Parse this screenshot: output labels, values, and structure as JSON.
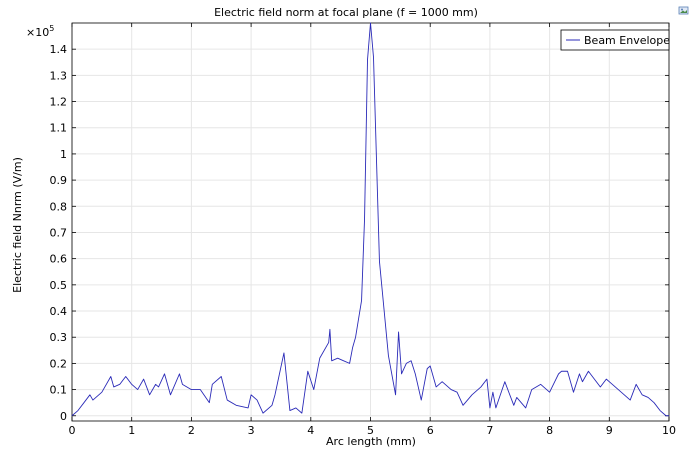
{
  "chart_data": {
    "type": "line",
    "title": "Electric field norm at focal plane (f = 1000 mm)",
    "xlabel": "Arc length (mm)",
    "ylabel": "Electric field Nnrm (V/m)",
    "y_multiplier": "×10",
    "y_multiplier_exponent": "5",
    "xlim": [
      0,
      10
    ],
    "ylim": [
      -0.02,
      1.5
    ],
    "x_ticks": [
      0,
      1,
      2,
      3,
      4,
      5,
      6,
      7,
      8,
      9,
      10
    ],
    "y_ticks": [
      0,
      0.1,
      0.2,
      0.3,
      0.4,
      0.5,
      0.6,
      0.7,
      0.8,
      0.9,
      1,
      1.1,
      1.2,
      1.3,
      1.4
    ],
    "y_tick_labels": [
      "0",
      "0.1",
      "0.2",
      "0.3",
      "0.4",
      "0.5",
      "0.6",
      "0.7",
      "0.8",
      "0.9",
      "1",
      "1.1",
      "1.2",
      "1.3",
      "1.4"
    ],
    "grid": true,
    "legend_position": "top-right",
    "series": [
      {
        "name": "Beam Envelope",
        "color": "#2b2bb8",
        "x": [
          0,
          0.1,
          0.2,
          0.3,
          0.35,
          0.5,
          0.65,
          0.7,
          0.8,
          0.9,
          1.0,
          1.1,
          1.2,
          1.3,
          1.4,
          1.45,
          1.55,
          1.65,
          1.8,
          1.85,
          2.0,
          2.15,
          2.3,
          2.35,
          2.5,
          2.6,
          2.75,
          2.95,
          3.0,
          3.1,
          3.2,
          3.35,
          3.4,
          3.55,
          3.65,
          3.75,
          3.85,
          3.95,
          4.05,
          4.15,
          4.3,
          4.32,
          4.35,
          4.45,
          4.55,
          4.65,
          4.7,
          4.75,
          4.85,
          4.9,
          4.95,
          5.0,
          5.05,
          5.15,
          5.3,
          5.42,
          5.47,
          5.52,
          5.6,
          5.68,
          5.75,
          5.85,
          5.95,
          6.0,
          6.1,
          6.2,
          6.35,
          6.45,
          6.55,
          6.7,
          6.85,
          6.95,
          7.0,
          7.05,
          7.1,
          7.25,
          7.4,
          7.45,
          7.6,
          7.7,
          7.85,
          8.0,
          8.15,
          8.2,
          8.3,
          8.4,
          8.5,
          8.55,
          8.65,
          8.75,
          8.85,
          8.95,
          9.05,
          9.15,
          9.25,
          9.35,
          9.45,
          9.55,
          9.65,
          9.75,
          9.85,
          9.95,
          10.0
        ],
        "values": [
          0.0,
          0.02,
          0.05,
          0.08,
          0.06,
          0.09,
          0.15,
          0.11,
          0.12,
          0.15,
          0.12,
          0.1,
          0.14,
          0.08,
          0.12,
          0.11,
          0.16,
          0.08,
          0.16,
          0.12,
          0.1,
          0.1,
          0.05,
          0.12,
          0.15,
          0.06,
          0.04,
          0.03,
          0.08,
          0.06,
          0.01,
          0.04,
          0.08,
          0.24,
          0.02,
          0.03,
          0.01,
          0.17,
          0.1,
          0.22,
          0.28,
          0.33,
          0.21,
          0.22,
          0.21,
          0.2,
          0.26,
          0.3,
          0.44,
          0.75,
          1.36,
          1.5,
          1.37,
          0.59,
          0.23,
          0.08,
          0.32,
          0.16,
          0.2,
          0.21,
          0.16,
          0.06,
          0.18,
          0.19,
          0.11,
          0.13,
          0.1,
          0.09,
          0.04,
          0.08,
          0.11,
          0.14,
          0.03,
          0.09,
          0.03,
          0.13,
          0.04,
          0.07,
          0.03,
          0.1,
          0.12,
          0.09,
          0.16,
          0.17,
          0.17,
          0.09,
          0.16,
          0.13,
          0.17,
          0.14,
          0.11,
          0.14,
          0.12,
          0.1,
          0.08,
          0.06,
          0.12,
          0.08,
          0.07,
          0.05,
          0.02,
          0.0,
          0.0
        ]
      }
    ]
  },
  "toolbar": {
    "export_icon": "image-export-icon"
  }
}
